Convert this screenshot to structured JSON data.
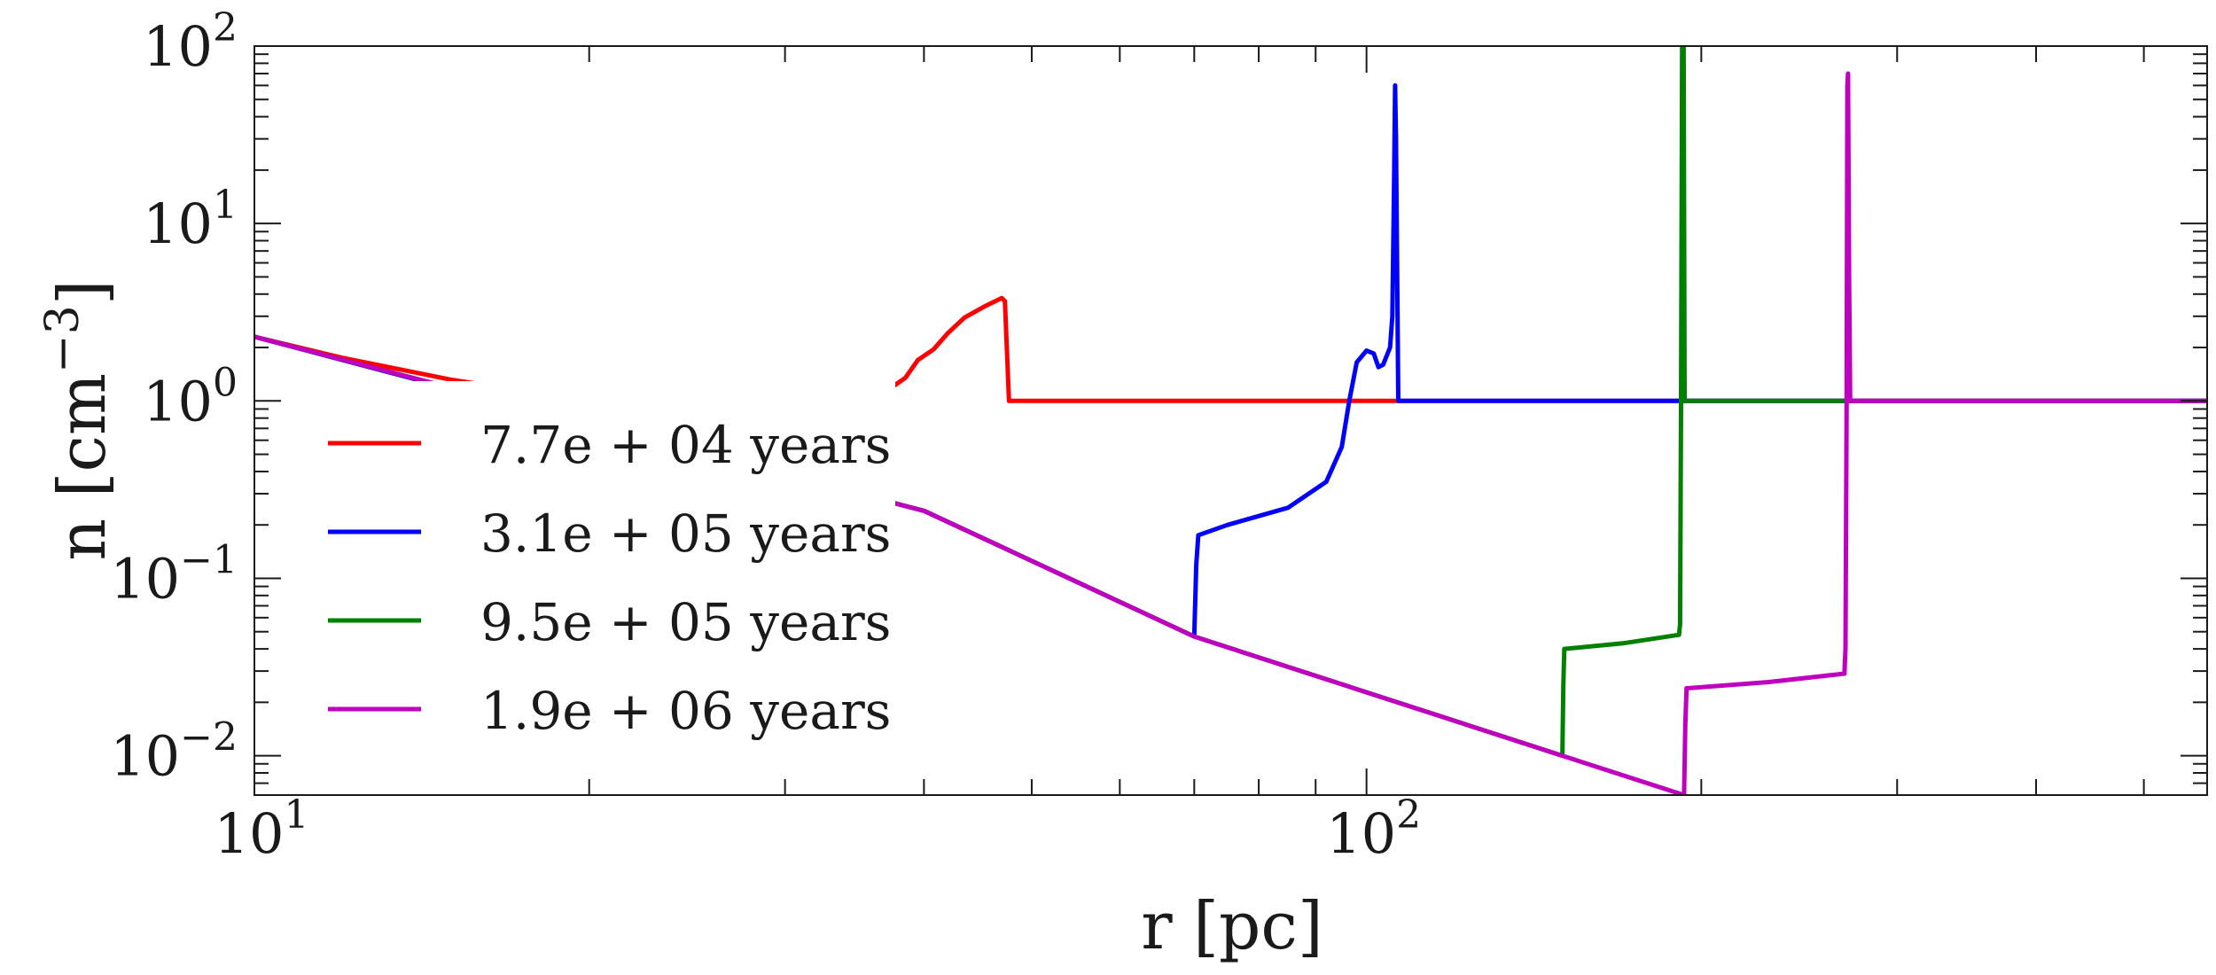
{
  "chart_data": {
    "type": "line",
    "x_scale": "log",
    "y_scale": "log",
    "xlim": [
      10,
      570
    ],
    "ylim": [
      0.006,
      100
    ],
    "xlabel": "r [pc]",
    "ylabel_base": "n [cm",
    "ylabel_exp": "−3",
    "ylabel_close": "]",
    "x_ticks": [
      {
        "value": 10,
        "base": "10",
        "exp": "1"
      },
      {
        "value": 100,
        "base": "10",
        "exp": "2"
      }
    ],
    "y_ticks": [
      {
        "value": 0.01,
        "base": "10",
        "exp": "−2"
      },
      {
        "value": 0.1,
        "base": "10",
        "exp": "−1"
      },
      {
        "value": 1,
        "base": "10",
        "exp": "0"
      },
      {
        "value": 10,
        "base": "10",
        "exp": "1"
      },
      {
        "value": 100,
        "base": "10",
        "exp": "2"
      }
    ],
    "legend_position": "center-left",
    "grid": false,
    "series": [
      {
        "name": "7.7e + 04 years",
        "color": "#ff0000",
        "points": [
          [
            10,
            2.3
          ],
          [
            12,
            1.75
          ],
          [
            15,
            1.32
          ],
          [
            20,
            1.0
          ],
          [
            25,
            0.85
          ],
          [
            30,
            0.8
          ],
          [
            34,
            0.88
          ],
          [
            36.5,
            1.07
          ],
          [
            38.5,
            1.35
          ],
          [
            39.5,
            1.7
          ],
          [
            40.8,
            1.95
          ],
          [
            42,
            2.4
          ],
          [
            43.5,
            2.95
          ],
          [
            45.5,
            3.45
          ],
          [
            47,
            3.8
          ],
          [
            47.3,
            3.65
          ],
          [
            47.7,
            1.0
          ],
          [
            100,
            1.0
          ],
          [
            570,
            1.0
          ]
        ]
      },
      {
        "name": "3.1e + 05 years",
        "color": "#0000ff",
        "points": [
          [
            10,
            2.3
          ],
          [
            20,
            0.73
          ],
          [
            40,
            0.24
          ],
          [
            70,
            0.047
          ],
          [
            70.3,
            0.12
          ],
          [
            70.6,
            0.175
          ],
          [
            75,
            0.2
          ],
          [
            85,
            0.25
          ],
          [
            92,
            0.35
          ],
          [
            95,
            0.55
          ],
          [
            96.5,
            1.0
          ],
          [
            98,
            1.65
          ],
          [
            100,
            1.92
          ],
          [
            101.5,
            1.85
          ],
          [
            102.5,
            1.55
          ],
          [
            103.5,
            1.6
          ],
          [
            105,
            2.0
          ],
          [
            105.5,
            3.0
          ],
          [
            105.9,
            20
          ],
          [
            106.1,
            60
          ],
          [
            106.3,
            30
          ],
          [
            106.8,
            1.0
          ],
          [
            150,
            1.0
          ],
          [
            570,
            1.0
          ]
        ]
      },
      {
        "name": "9.5e + 05 years",
        "color": "#008000",
        "points": [
          [
            10,
            2.3
          ],
          [
            40,
            0.24
          ],
          [
            70,
            0.047
          ],
          [
            150,
            0.01
          ],
          [
            150.3,
            0.025
          ],
          [
            150.6,
            0.04
          ],
          [
            170,
            0.043
          ],
          [
            191,
            0.048
          ],
          [
            191.4,
            0.055
          ],
          [
            191.8,
            1.0
          ],
          [
            192.2,
            100
          ],
          [
            192.8,
            100
          ],
          [
            193.2,
            1.0
          ],
          [
            300,
            1.0
          ],
          [
            570,
            1.0
          ]
        ]
      },
      {
        "name": "1.9e + 06 years",
        "color": "#bf00bf",
        "points": [
          [
            10,
            2.3
          ],
          [
            40,
            0.24
          ],
          [
            70,
            0.047
          ],
          [
            150,
            0.01
          ],
          [
            193,
            0.006
          ],
          [
            193.5,
            0.015
          ],
          [
            194,
            0.024
          ],
          [
            230,
            0.026
          ],
          [
            269,
            0.029
          ],
          [
            269.6,
            0.04
          ],
          [
            270.2,
            1.0
          ],
          [
            270.6,
            60
          ],
          [
            271,
            70
          ],
          [
            271.6,
            5.0
          ],
          [
            272.2,
            1.0
          ],
          [
            400,
            1.0
          ],
          [
            570,
            1.0
          ]
        ]
      }
    ]
  }
}
